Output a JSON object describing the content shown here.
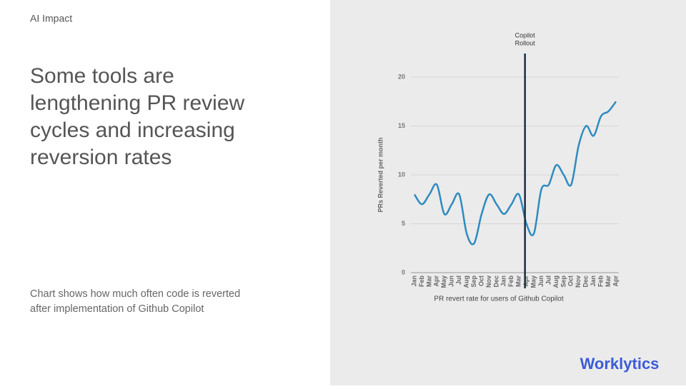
{
  "header": {
    "section": "AI Impact",
    "title_lines": [
      "Some tools are",
      "lengthening PR review",
      "cycles and increasing",
      "reversion rates"
    ],
    "description_lines": [
      "Chart shows how much often code is reverted",
      "after implementation of Github Copilot"
    ]
  },
  "logo": {
    "text": "Worklytics"
  },
  "chart_data": {
    "type": "line",
    "y_label": "PRs Reverted per month",
    "caption": "PR revert rate for users of Github Copilot",
    "categories": [
      "Jan",
      "Feb",
      "Mar",
      "Apr",
      "May",
      "Jun",
      "Jul",
      "Aug",
      "Sep",
      "Oct",
      "Nov",
      "Dec",
      "Jan",
      "Feb",
      "Mar",
      "Apr",
      "May",
      "Jun",
      "Jul",
      "Aug",
      "Sep",
      "Oct",
      "Nov",
      "Dec",
      "Jan",
      "Feb",
      "Mar",
      "Apr"
    ],
    "series": [
      {
        "name": "PRs Reverted per month",
        "color": "#2e8bc0",
        "values": [
          8,
          7,
          8,
          9,
          6,
          7,
          8,
          4,
          3,
          6,
          8,
          7,
          6,
          7,
          8,
          5,
          4,
          8.5,
          9,
          11,
          10,
          9,
          13,
          15,
          14,
          16,
          16.5,
          17.5
        ]
      }
    ],
    "ylim": [
      0,
      20
    ],
    "yticks": [
      0,
      5,
      10,
      15,
      20
    ],
    "grid": true,
    "annotation": {
      "lines": [
        "Copilot",
        "Rollout"
      ],
      "category_index": 15,
      "color": "#1a2e44"
    }
  }
}
